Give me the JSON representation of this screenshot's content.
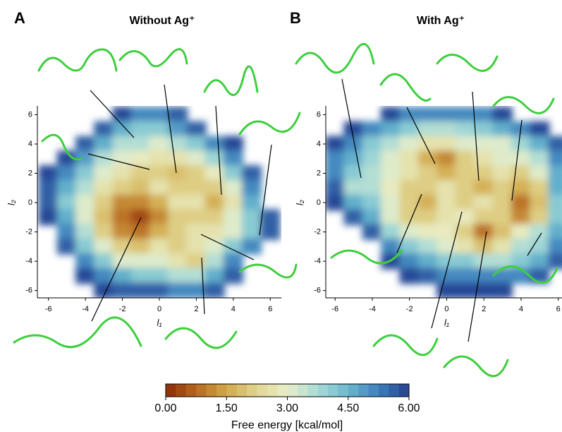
{
  "chart_data": [
    {
      "type": "contour",
      "panel": "A",
      "title": "Without Ag⁺",
      "xlabel": "l₁",
      "ylabel": "l₂",
      "xlim": [
        -6.6,
        6.6
      ],
      "ylim": [
        -6.5,
        6.6
      ],
      "xticks": [
        -6,
        -4,
        -2,
        0,
        2,
        4,
        6
      ],
      "yticks": [
        -6,
        -4,
        -2,
        0,
        2,
        4,
        6
      ],
      "x": [
        -6,
        -5,
        -4,
        -3,
        -2,
        -1,
        0,
        1,
        2,
        3,
        4,
        5,
        6
      ],
      "y": [
        6,
        5,
        4,
        3,
        2,
        1,
        0,
        -1,
        -2,
        -3,
        -4,
        -5,
        -6
      ],
      "z": [
        [
          null,
          null,
          null,
          null,
          5.8,
          5.2,
          5.2,
          5.6,
          null,
          null,
          null,
          null,
          null
        ],
        [
          null,
          null,
          null,
          5.5,
          4.5,
          4,
          4.2,
          4.8,
          5.5,
          null,
          null,
          null,
          null
        ],
        [
          null,
          null,
          5.5,
          4.5,
          3.5,
          3.5,
          3.2,
          3.5,
          4.2,
          5,
          5.8,
          null,
          null
        ],
        [
          null,
          5.8,
          4.8,
          3.5,
          3,
          2.8,
          2.5,
          2.5,
          3,
          3.8,
          5,
          null,
          null
        ],
        [
          5.8,
          5,
          4,
          3,
          2.5,
          2,
          2,
          1.8,
          2.2,
          2.8,
          4,
          5.5,
          null
        ],
        [
          5.5,
          4.5,
          3.5,
          2.5,
          2,
          1.8,
          2.5,
          2.2,
          2,
          2,
          3,
          5,
          null
        ],
        [
          5.5,
          4.2,
          3,
          2,
          1.2,
          1,
          1.5,
          2.5,
          2.5,
          1.5,
          2.5,
          4.5,
          null
        ],
        [
          5.8,
          4.5,
          3.2,
          1.8,
          0.8,
          0.3,
          1.2,
          2.2,
          2.2,
          2.2,
          3,
          4,
          5.5
        ],
        [
          null,
          5,
          3.5,
          2.2,
          1.2,
          0.8,
          1.5,
          2.2,
          2.5,
          2.5,
          3.2,
          4,
          5.5
        ],
        [
          null,
          5.5,
          4.2,
          3,
          2.2,
          1.8,
          2.5,
          2.2,
          2.5,
          3,
          4,
          5,
          null
        ],
        [
          null,
          null,
          5,
          4,
          3.2,
          3,
          3,
          2.5,
          2.2,
          3.5,
          5,
          null,
          null
        ],
        [
          null,
          null,
          5.8,
          5,
          4.5,
          4.2,
          4,
          3.5,
          3.5,
          4.5,
          5.5,
          null,
          null
        ],
        [
          null,
          null,
          null,
          5.8,
          5.5,
          5.5,
          5.5,
          5,
          5,
          5.5,
          null,
          null,
          null
        ]
      ]
    },
    {
      "type": "contour",
      "panel": "B",
      "title": "With Ag⁺",
      "xlabel": "l₁",
      "ylabel": "l₂",
      "xlim": [
        -6.5,
        6.2
      ],
      "ylim": [
        -6.5,
        6.6
      ],
      "xticks": [
        -6,
        -4,
        -2,
        0,
        2,
        4,
        6
      ],
      "yticks": [
        -6,
        -4,
        -2,
        0,
        2,
        4,
        6
      ],
      "x": [
        -6,
        -5,
        -4,
        -3,
        -2,
        -1,
        0,
        1,
        2,
        3,
        4,
        5,
        6
      ],
      "y": [
        6,
        5,
        4,
        3,
        2,
        1,
        0,
        -1,
        -2,
        -3,
        -4,
        -5,
        -6
      ],
      "z": [
        [
          null,
          null,
          null,
          5.8,
          5.2,
          5,
          5,
          5,
          5.2,
          5.8,
          null,
          null,
          null
        ],
        [
          null,
          5.8,
          5,
          4.5,
          4,
          3.5,
          3.5,
          3.8,
          4,
          4.5,
          5,
          5.8,
          null
        ],
        [
          5.8,
          5,
          4,
          3.5,
          3,
          2.5,
          2.5,
          3,
          3,
          3.2,
          3.8,
          4.5,
          5.5
        ],
        [
          5.2,
          4.5,
          3.8,
          3,
          2.5,
          1.5,
          1,
          2,
          2.5,
          3,
          3,
          3.5,
          5
        ],
        [
          5,
          4,
          3.5,
          3,
          2.5,
          2,
          1.5,
          2,
          2,
          2.5,
          2.2,
          3,
          4.5
        ],
        [
          5.5,
          3.5,
          3.5,
          2.8,
          2.2,
          2,
          2.5,
          2.2,
          1.5,
          2.2,
          1.5,
          2.2,
          4.5
        ],
        [
          5.8,
          4.5,
          4,
          3,
          2,
          1.5,
          2.5,
          2.2,
          2.5,
          2,
          0.8,
          1.8,
          4.2
        ],
        [
          null,
          5.5,
          4.5,
          3,
          2.2,
          2.2,
          2.5,
          2.8,
          2.2,
          2.2,
          1.2,
          2.2,
          4
        ],
        [
          null,
          null,
          5.5,
          3.8,
          3,
          2.8,
          2.8,
          2.2,
          0.8,
          1.8,
          2.8,
          3.5,
          4.5
        ],
        [
          null,
          null,
          null,
          5,
          4,
          3.5,
          3.2,
          2.5,
          1.8,
          2.5,
          3.5,
          3.8,
          5
        ],
        [
          null,
          null,
          null,
          5.8,
          5,
          4.5,
          4.2,
          4,
          3.5,
          3.5,
          4,
          4.5,
          5.5
        ],
        [
          null,
          null,
          null,
          null,
          5.8,
          5.5,
          5.2,
          5,
          5,
          5,
          5,
          5.5,
          null
        ],
        [
          null,
          null,
          null,
          null,
          null,
          null,
          5.8,
          5.8,
          5.8,
          5.8,
          null,
          null,
          null
        ]
      ]
    }
  ],
  "colorbar": {
    "label": "Free energy [kcal/mol]",
    "lim": [
      0,
      6
    ],
    "ticks": [
      {
        "value": 0,
        "label": "0.00"
      },
      {
        "value": 1.5,
        "label": "1.50"
      },
      {
        "value": 3,
        "label": "3.00"
      },
      {
        "value": 4.5,
        "label": "4.50"
      },
      {
        "value": 6,
        "label": "6.00"
      }
    ],
    "levels": 24,
    "colors": [
      "#8c2a06",
      "#b8681e",
      "#d2a94a",
      "#e0d590",
      "#e9eec9",
      "#a8dbd6",
      "#6ab8cf",
      "#3d80bd",
      "#243f8f"
    ]
  }
}
